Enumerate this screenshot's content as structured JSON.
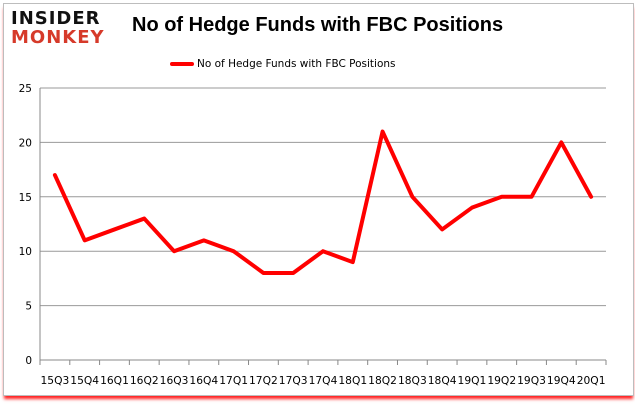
{
  "logo": {
    "line1": "INSIDER",
    "line2": "MONKEY"
  },
  "chart_data": {
    "type": "line",
    "title": "No of Hedge Funds with FBC Positions",
    "categories": [
      "15Q3",
      "15Q4",
      "16Q1",
      "16Q2",
      "16Q3",
      "16Q4",
      "17Q1",
      "17Q2",
      "17Q3",
      "17Q4",
      "18Q1",
      "18Q2",
      "18Q3",
      "18Q4",
      "19Q1",
      "19Q2",
      "19Q3",
      "19Q4",
      "20Q1"
    ],
    "series": [
      {
        "name": "No of Hedge Funds with FBC Positions",
        "color": "#ff0000",
        "values": [
          17,
          11,
          12,
          13,
          10,
          11,
          10,
          8,
          8,
          10,
          9,
          21,
          15,
          12,
          14,
          15,
          15,
          20,
          15
        ]
      }
    ],
    "ylim": [
      0,
      25
    ],
    "yticks": [
      0,
      5,
      10,
      15,
      20,
      25
    ],
    "grid": true,
    "legend": "top"
  }
}
